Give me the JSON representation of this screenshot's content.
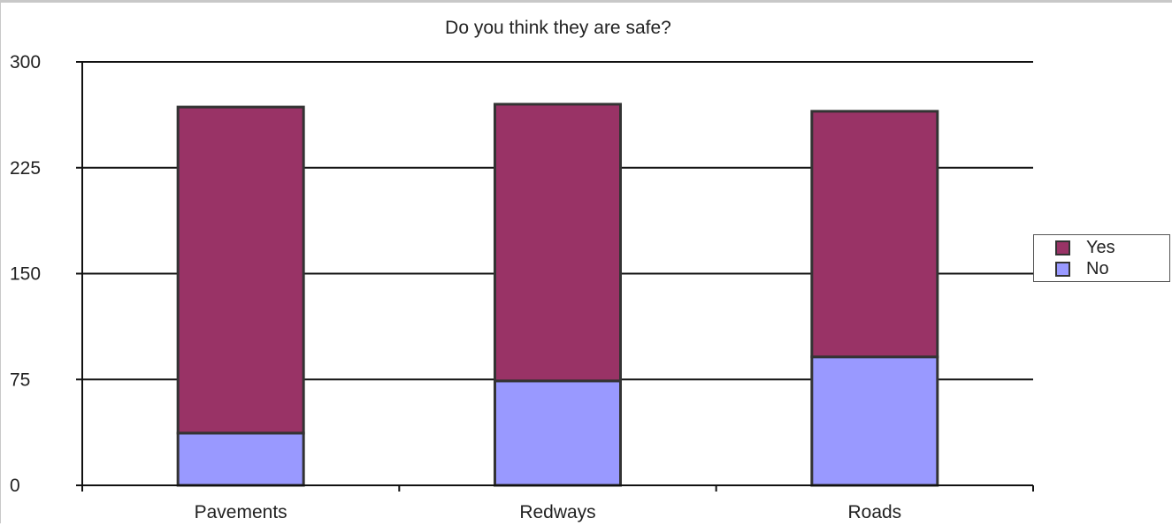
{
  "chart_data": {
    "type": "bar",
    "stacked": true,
    "title": "Do you think they are safe?",
    "xlabel": "",
    "ylabel": "",
    "categories": [
      "Pavements",
      "Redways",
      "Roads"
    ],
    "series": [
      {
        "name": "No",
        "color": "#9999ff",
        "values": [
          37,
          74,
          91
        ]
      },
      {
        "name": "Yes",
        "color": "#993366",
        "values": [
          231,
          196,
          174
        ]
      }
    ],
    "ylim": [
      0,
      300
    ],
    "yticks": [
      0,
      75,
      150,
      225,
      300
    ],
    "grid": true,
    "legend_position": "right",
    "legend_order": [
      "Yes",
      "No"
    ]
  }
}
